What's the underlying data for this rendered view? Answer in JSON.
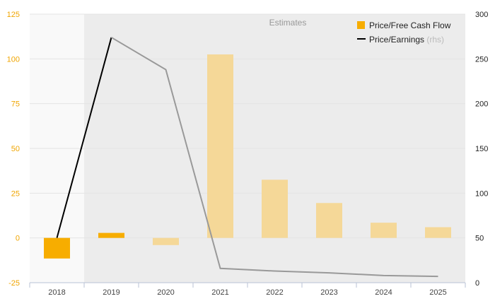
{
  "chart_data": {
    "type": "bar+line",
    "categories": [
      "2018",
      "2019",
      "2020",
      "2021",
      "2022",
      "2023",
      "2024",
      "2025"
    ],
    "series": [
      {
        "name": "Price/Free Cash Flow",
        "type": "bar",
        "axis": "left",
        "values": [
          -11.5,
          2.8,
          -4,
          102.5,
          32.5,
          19.5,
          8.5,
          6
        ]
      },
      {
        "name": "Price/Earnings",
        "axis_note": "(rhs)",
        "type": "line",
        "axis": "right",
        "values": [
          50,
          274,
          238,
          16,
          13,
          11,
          8,
          7
        ]
      }
    ],
    "left_axis": {
      "min": -25,
      "max": 125,
      "ticks": [
        "125",
        "100",
        "75",
        "50",
        "25",
        "0",
        "-25"
      ]
    },
    "right_axis": {
      "min": 0,
      "max": 300,
      "ticks": [
        "300",
        "250",
        "200",
        "150",
        "100",
        "50",
        "0"
      ]
    },
    "estimates_label": "Estimates",
    "estimates_from_index": 1,
    "grid": true,
    "legend_position": "top-right",
    "colors": {
      "bar": "#f7ad00",
      "bar_estimate": "#f5d898",
      "line": "#000000",
      "line_estimate": "#999999",
      "estimate_shade": "#ececec",
      "left_tick": "#f0a500"
    }
  }
}
